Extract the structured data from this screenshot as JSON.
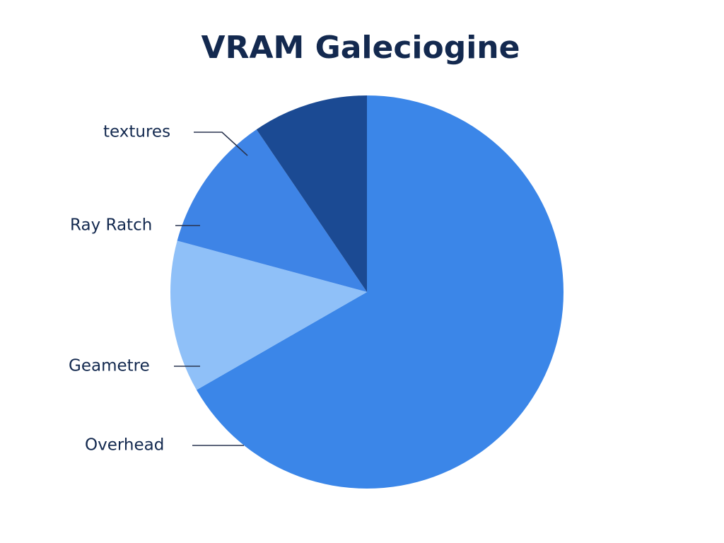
{
  "chart_data": {
    "type": "pie",
    "title": "VRAM Galeciogine",
    "categories": [
      "Overhead",
      "Geametre",
      "Ray Ratch",
      "textures"
    ],
    "values": [
      66.7,
      12.5,
      11.3,
      9.5
    ],
    "colors": [
      "#3b86e8",
      "#8fc0f8",
      "#3e84e6",
      "#1b4a93"
    ]
  }
}
